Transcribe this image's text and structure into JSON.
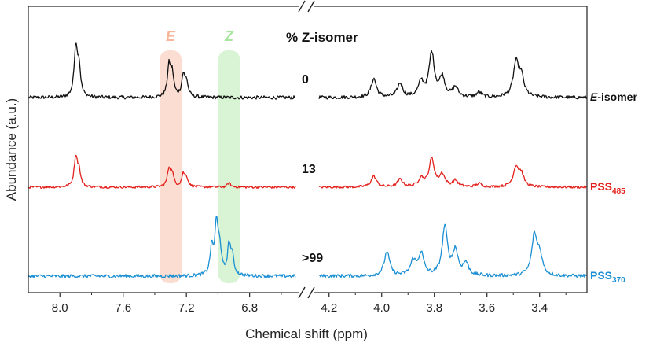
{
  "chart_data": {
    "type": "line",
    "title": "% Z-isomer",
    "xlabel": "Chemical shift (ppm)",
    "ylabel": "Abundance (a.u.)",
    "x_reversed": true,
    "axis_break": true,
    "panels": [
      {
        "name": "left",
        "xlim": [
          8.2,
          6.5
        ],
        "ticks": [
          8.0,
          7.6,
          7.2,
          6.8
        ]
      },
      {
        "name": "right",
        "xlim": [
          4.25,
          3.22
        ],
        "ticks": [
          4.2,
          4.0,
          3.8,
          3.6,
          3.4
        ]
      }
    ],
    "highlights": [
      {
        "label": "E",
        "ppm": 7.3,
        "color": "#f7b59a"
      },
      {
        "label": "Z",
        "ppm": 6.93,
        "color": "#a8e6a0"
      }
    ],
    "series": [
      {
        "name": "E-isomer",
        "label_italic": "E",
        "label_rest": "-isomer",
        "percent_z": "0",
        "color": "#111111",
        "peaks_left": [
          {
            "ppm": 7.9,
            "height": 1.0
          },
          {
            "ppm": 7.88,
            "height": 0.6
          },
          {
            "ppm": 7.31,
            "height": 0.62
          },
          {
            "ppm": 7.29,
            "height": 0.45
          },
          {
            "ppm": 7.22,
            "height": 0.42
          },
          {
            "ppm": 7.2,
            "height": 0.3
          }
        ],
        "peaks_right": [
          {
            "ppm": 4.03,
            "height": 0.38
          },
          {
            "ppm": 3.93,
            "height": 0.28
          },
          {
            "ppm": 3.85,
            "height": 0.3
          },
          {
            "ppm": 3.81,
            "height": 0.9
          },
          {
            "ppm": 3.77,
            "height": 0.4
          },
          {
            "ppm": 3.72,
            "height": 0.2
          },
          {
            "ppm": 3.63,
            "height": 0.1
          },
          {
            "ppm": 3.49,
            "height": 0.68
          },
          {
            "ppm": 3.47,
            "height": 0.4
          }
        ]
      },
      {
        "name": "PSS485",
        "label_main": "PSS",
        "label_sub": "485",
        "percent_z": "13",
        "color": "#e3201b",
        "peaks_left": [
          {
            "ppm": 7.9,
            "height": 0.85
          },
          {
            "ppm": 7.88,
            "height": 0.45
          },
          {
            "ppm": 7.31,
            "height": 0.5
          },
          {
            "ppm": 7.29,
            "height": 0.35
          },
          {
            "ppm": 7.22,
            "height": 0.35
          },
          {
            "ppm": 7.2,
            "height": 0.25
          },
          {
            "ppm": 6.93,
            "height": 0.12
          }
        ],
        "peaks_right": [
          {
            "ppm": 4.03,
            "height": 0.32
          },
          {
            "ppm": 3.93,
            "height": 0.22
          },
          {
            "ppm": 3.85,
            "height": 0.25
          },
          {
            "ppm": 3.81,
            "height": 0.8
          },
          {
            "ppm": 3.77,
            "height": 0.35
          },
          {
            "ppm": 3.72,
            "height": 0.18
          },
          {
            "ppm": 3.63,
            "height": 0.1
          },
          {
            "ppm": 3.49,
            "height": 0.55
          },
          {
            "ppm": 3.47,
            "height": 0.35
          }
        ]
      },
      {
        "name": "PSS370",
        "label_main": "PSS",
        "label_sub": "370",
        "percent_z": ">99",
        "color": "#1a8fd4",
        "peaks_left": [
          {
            "ppm": 7.04,
            "height": 0.55
          },
          {
            "ppm": 7.01,
            "height": 1.0
          },
          {
            "ppm": 6.99,
            "height": 0.55
          },
          {
            "ppm": 6.93,
            "height": 0.6
          },
          {
            "ppm": 6.91,
            "height": 0.35
          }
        ],
        "peaks_right": [
          {
            "ppm": 3.98,
            "height": 0.5
          },
          {
            "ppm": 3.88,
            "height": 0.3
          },
          {
            "ppm": 3.85,
            "height": 0.45
          },
          {
            "ppm": 3.76,
            "height": 1.0
          },
          {
            "ppm": 3.72,
            "height": 0.5
          },
          {
            "ppm": 3.68,
            "height": 0.25
          },
          {
            "ppm": 3.42,
            "height": 0.8
          },
          {
            "ppm": 3.4,
            "height": 0.4
          }
        ]
      }
    ]
  }
}
